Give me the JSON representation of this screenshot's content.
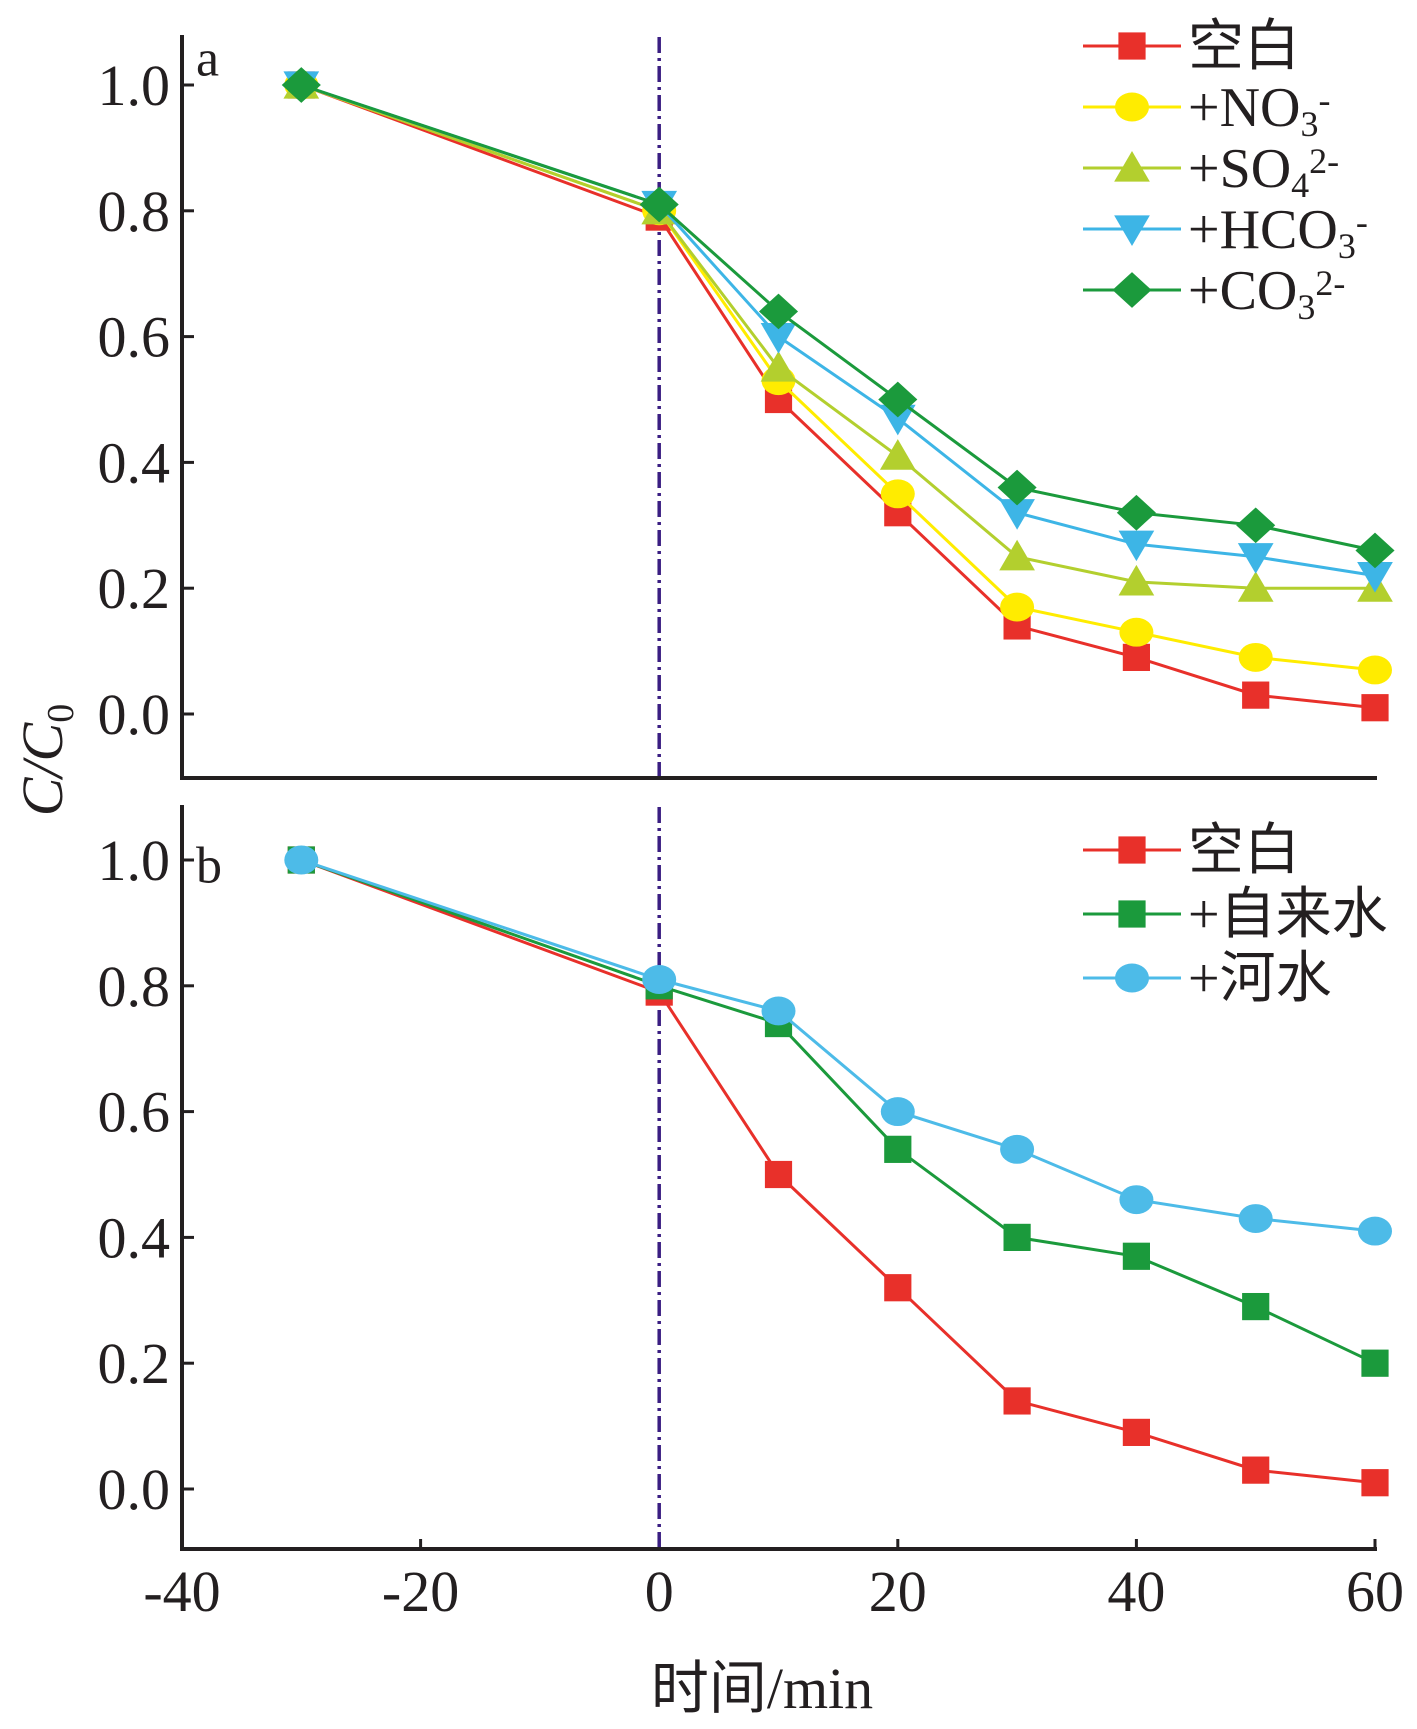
{
  "chart_data": [
    {
      "type": "line",
      "panel_label": "a",
      "x": [
        -30,
        0,
        10,
        20,
        30,
        40,
        50,
        60
      ],
      "xlim": [
        -40,
        60
      ],
      "ylim": [
        -0.1,
        1.1
      ],
      "yticks": [
        "0.0",
        "0.2",
        "0.4",
        "0.6",
        "0.8",
        "1.0"
      ],
      "ylabel": "C/C0",
      "vline_x": 0,
      "legend_position": "top-right",
      "series": [
        {
          "name": "空白",
          "label_parts": [
            [
              "空白",
              ""
            ]
          ],
          "marker": "square",
          "color": "#e8302a",
          "values": [
            1.0,
            0.79,
            0.5,
            0.32,
            0.14,
            0.09,
            0.03,
            0.01
          ]
        },
        {
          "name": "+NO3-",
          "label_parts": [
            [
              "+NO",
              ""
            ],
            [
              "3",
              "sub"
            ],
            [
              "-",
              "sup"
            ]
          ],
          "marker": "circle",
          "color": "#ffec00",
          "values": [
            1.0,
            0.8,
            0.53,
            0.35,
            0.17,
            0.13,
            0.09,
            0.07
          ]
        },
        {
          "name": "+SO42-",
          "label_parts": [
            [
              "+SO",
              ""
            ],
            [
              "4",
              "sub"
            ],
            [
              "2-",
              "sup"
            ]
          ],
          "marker": "triangle",
          "color": "#b3cf2e",
          "values": [
            1.0,
            0.8,
            0.55,
            0.41,
            0.25,
            0.21,
            0.2,
            0.2
          ]
        },
        {
          "name": "+HCO3-",
          "label_parts": [
            [
              "+HCO",
              ""
            ],
            [
              "3",
              "sub"
            ],
            [
              "-",
              "sup"
            ]
          ],
          "marker": "triangle-down",
          "color": "#3db5e6",
          "values": [
            1.0,
            0.81,
            0.6,
            0.47,
            0.32,
            0.27,
            0.25,
            0.22
          ]
        },
        {
          "name": "+CO32-",
          "label_parts": [
            [
              "+CO",
              ""
            ],
            [
              "3",
              "sub"
            ],
            [
              "2-",
              "sup"
            ]
          ],
          "marker": "diamond",
          "color": "#1b9a3c",
          "values": [
            1.0,
            0.81,
            0.64,
            0.5,
            0.36,
            0.32,
            0.3,
            0.26
          ]
        }
      ]
    },
    {
      "type": "line",
      "panel_label": "b",
      "x": [
        -30,
        0,
        10,
        20,
        30,
        40,
        50,
        60
      ],
      "xlim": [
        -40,
        60
      ],
      "ylim": [
        -0.1,
        1.1
      ],
      "xticks": [
        "-40",
        "-20",
        "0",
        "20",
        "40",
        "60"
      ],
      "yticks": [
        "0.0",
        "0.2",
        "0.4",
        "0.6",
        "0.8",
        "1.0"
      ],
      "xlabel": "时间/min",
      "vline_x": 0,
      "legend_position": "top-right",
      "series": [
        {
          "name": "空白",
          "label_parts": [
            [
              "空白",
              ""
            ]
          ],
          "marker": "square",
          "color": "#e8302a",
          "values": [
            1.0,
            0.79,
            0.5,
            0.32,
            0.14,
            0.09,
            0.03,
            0.01
          ]
        },
        {
          "name": "+自来水",
          "label_parts": [
            [
              "+自来水",
              ""
            ]
          ],
          "marker": "square",
          "color": "#1b9a3c",
          "values": [
            1.0,
            0.8,
            0.74,
            0.54,
            0.4,
            0.37,
            0.29,
            0.2
          ]
        },
        {
          "name": "+河水",
          "label_parts": [
            [
              "+河水",
              ""
            ]
          ],
          "marker": "circle",
          "color": "#4dbbe8",
          "values": [
            1.0,
            0.81,
            0.76,
            0.6,
            0.54,
            0.46,
            0.43,
            0.41
          ]
        }
      ]
    }
  ],
  "colors": {
    "axis": "#231f20",
    "vline": "#3a1e82"
  }
}
